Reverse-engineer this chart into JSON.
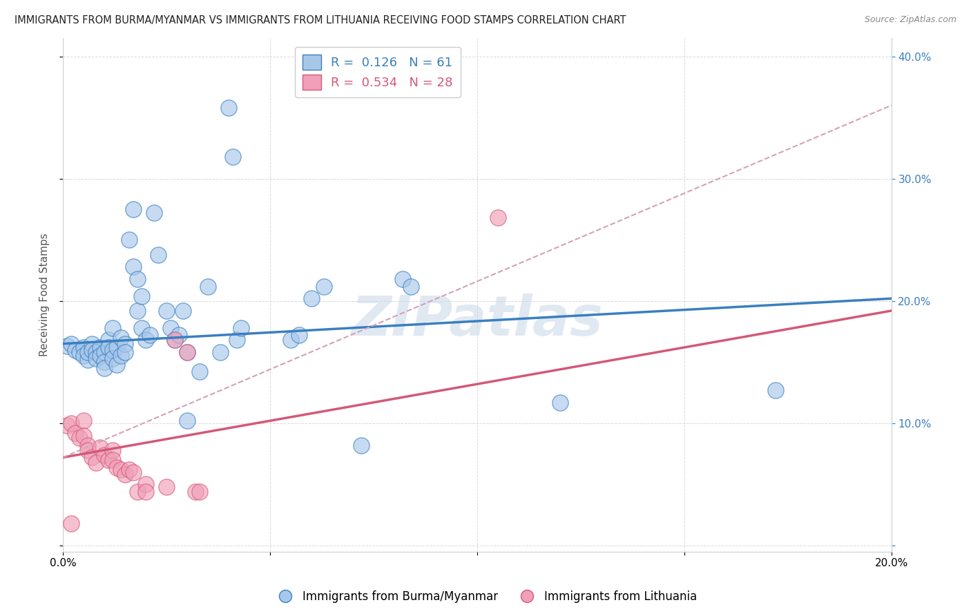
{
  "title": "IMMIGRANTS FROM BURMA/MYANMAR VS IMMIGRANTS FROM LITHUANIA RECEIVING FOOD STAMPS CORRELATION CHART",
  "source": "Source: ZipAtlas.com",
  "ylabel": "Receiving Food Stamps",
  "xlim": [
    0.0,
    0.2
  ],
  "ylim": [
    -0.005,
    0.415
  ],
  "color_blue": "#a8c8ea",
  "color_pink": "#f0a0b8",
  "line_blue": "#3a7fc1",
  "line_pink": "#d45878",
  "line_dashed_color": "#d4a0b8",
  "watermark": "ZIPatlas",
  "blue_scatter": [
    [
      0.001,
      0.163
    ],
    [
      0.002,
      0.165
    ],
    [
      0.003,
      0.16
    ],
    [
      0.004,
      0.158
    ],
    [
      0.005,
      0.162
    ],
    [
      0.005,
      0.155
    ],
    [
      0.006,
      0.152
    ],
    [
      0.006,
      0.158
    ],
    [
      0.007,
      0.165
    ],
    [
      0.007,
      0.16
    ],
    [
      0.008,
      0.158
    ],
    [
      0.008,
      0.153
    ],
    [
      0.009,
      0.162
    ],
    [
      0.009,
      0.155
    ],
    [
      0.01,
      0.158
    ],
    [
      0.01,
      0.15
    ],
    [
      0.01,
      0.145
    ],
    [
      0.011,
      0.168
    ],
    [
      0.011,
      0.162
    ],
    [
      0.012,
      0.16
    ],
    [
      0.012,
      0.153
    ],
    [
      0.012,
      0.178
    ],
    [
      0.013,
      0.162
    ],
    [
      0.013,
      0.148
    ],
    [
      0.014,
      0.17
    ],
    [
      0.014,
      0.155
    ],
    [
      0.015,
      0.165
    ],
    [
      0.015,
      0.158
    ],
    [
      0.016,
      0.25
    ],
    [
      0.017,
      0.275
    ],
    [
      0.017,
      0.228
    ],
    [
      0.018,
      0.218
    ],
    [
      0.018,
      0.192
    ],
    [
      0.019,
      0.204
    ],
    [
      0.019,
      0.178
    ],
    [
      0.02,
      0.168
    ],
    [
      0.021,
      0.172
    ],
    [
      0.022,
      0.272
    ],
    [
      0.023,
      0.238
    ],
    [
      0.025,
      0.192
    ],
    [
      0.026,
      0.178
    ],
    [
      0.027,
      0.168
    ],
    [
      0.028,
      0.172
    ],
    [
      0.029,
      0.192
    ],
    [
      0.03,
      0.158
    ],
    [
      0.03,
      0.102
    ],
    [
      0.033,
      0.142
    ],
    [
      0.035,
      0.212
    ],
    [
      0.038,
      0.158
    ],
    [
      0.04,
      0.358
    ],
    [
      0.041,
      0.318
    ],
    [
      0.042,
      0.168
    ],
    [
      0.043,
      0.178
    ],
    [
      0.055,
      0.168
    ],
    [
      0.057,
      0.172
    ],
    [
      0.06,
      0.202
    ],
    [
      0.063,
      0.212
    ],
    [
      0.072,
      0.082
    ],
    [
      0.082,
      0.218
    ],
    [
      0.084,
      0.212
    ],
    [
      0.12,
      0.117
    ],
    [
      0.172,
      0.127
    ]
  ],
  "pink_scatter": [
    [
      0.001,
      0.098
    ],
    [
      0.002,
      0.1
    ],
    [
      0.003,
      0.092
    ],
    [
      0.004,
      0.088
    ],
    [
      0.005,
      0.102
    ],
    [
      0.005,
      0.09
    ],
    [
      0.006,
      0.082
    ],
    [
      0.006,
      0.078
    ],
    [
      0.007,
      0.072
    ],
    [
      0.008,
      0.068
    ],
    [
      0.009,
      0.08
    ],
    [
      0.01,
      0.074
    ],
    [
      0.011,
      0.07
    ],
    [
      0.012,
      0.078
    ],
    [
      0.012,
      0.07
    ],
    [
      0.013,
      0.064
    ],
    [
      0.014,
      0.062
    ],
    [
      0.015,
      0.058
    ],
    [
      0.016,
      0.062
    ],
    [
      0.017,
      0.06
    ],
    [
      0.018,
      0.044
    ],
    [
      0.02,
      0.05
    ],
    [
      0.02,
      0.044
    ],
    [
      0.025,
      0.048
    ],
    [
      0.027,
      0.168
    ],
    [
      0.03,
      0.158
    ],
    [
      0.032,
      0.044
    ],
    [
      0.033,
      0.044
    ],
    [
      0.002,
      0.018
    ],
    [
      0.105,
      0.268
    ]
  ],
  "blue_trend": [
    0.0,
    0.2,
    0.165,
    0.202
  ],
  "pink_trend": [
    0.0,
    0.2,
    0.072,
    0.192
  ],
  "dashed_trend": [
    0.0,
    0.2,
    0.072,
    0.36
  ],
  "background_color": "#ffffff",
  "grid_color": "#d8d8d8"
}
